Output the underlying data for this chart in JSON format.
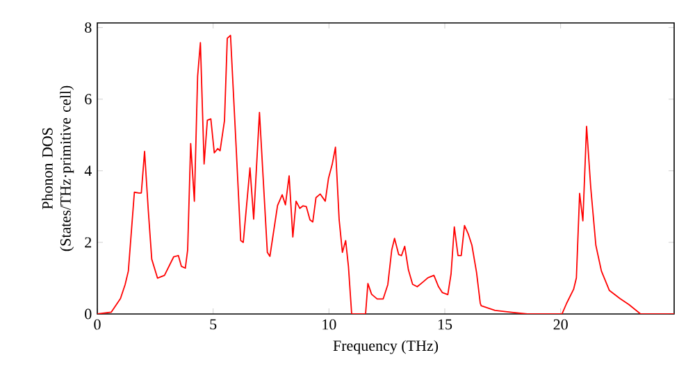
{
  "chart_data": {
    "type": "line",
    "xlabel": "Frequency (THz)",
    "ylabel": "Phonon DOS (States/THz·primitive cell)",
    "color": "#ff0000",
    "xlim": [
      0,
      24.9
    ],
    "ylim": [
      0,
      8.13
    ],
    "xticks": [
      0,
      5,
      10,
      15,
      20
    ],
    "yticks": [
      0,
      2,
      4,
      6,
      8
    ],
    "x": [
      0,
      0.6,
      1.0,
      1.2,
      1.34,
      1.6,
      1.8,
      1.9,
      2.04,
      2.2,
      2.35,
      2.6,
      2.9,
      3.3,
      3.5,
      3.63,
      3.8,
      3.9,
      4.03,
      4.19,
      4.33,
      4.45,
      4.61,
      4.75,
      4.9,
      5.05,
      5.2,
      5.3,
      5.49,
      5.61,
      5.75,
      5.99,
      6.19,
      6.3,
      6.59,
      6.75,
      7.0,
      7.34,
      7.45,
      7.78,
      7.98,
      8.12,
      8.28,
      8.44,
      8.58,
      8.74,
      8.88,
      9.02,
      9.18,
      9.3,
      9.44,
      9.62,
      9.84,
      9.98,
      10.14,
      10.28,
      10.44,
      10.58,
      10.72,
      10.84,
      10.98,
      11.58,
      11.68,
      11.84,
      12.08,
      12.34,
      12.54,
      12.71,
      12.83,
      13.01,
      13.13,
      13.27,
      13.43,
      13.61,
      13.81,
      14.07,
      14.27,
      14.53,
      14.73,
      14.89,
      15.13,
      15.27,
      15.41,
      15.57,
      15.71,
      15.85,
      16.01,
      16.17,
      16.37,
      16.53,
      16.57,
      17.17,
      17.96,
      18.56,
      20.06,
      20.26,
      20.56,
      20.68,
      20.82,
      20.96,
      21.12,
      21.3,
      21.52,
      21.76,
      22.1,
      22.56,
      22.95,
      23.45,
      24.9
    ],
    "values": [
      0,
      0.05,
      0.43,
      0.82,
      1.2,
      3.4,
      3.38,
      3.38,
      4.54,
      2.9,
      1.53,
      1.0,
      1.08,
      1.6,
      1.63,
      1.33,
      1.28,
      1.79,
      4.76,
      3.15,
      6.64,
      7.58,
      4.19,
      5.41,
      5.45,
      4.5,
      4.62,
      4.56,
      5.4,
      7.7,
      7.78,
      4.7,
      2.05,
      2.0,
      4.08,
      2.65,
      5.63,
      1.72,
      1.61,
      3.03,
      3.33,
      3.05,
      3.86,
      2.15,
      3.15,
      2.95,
      3.02,
      3.0,
      2.63,
      2.57,
      3.25,
      3.35,
      3.15,
      3.79,
      4.18,
      4.66,
      2.63,
      1.72,
      2.05,
      1.33,
      0,
      0,
      0.85,
      0.55,
      0.42,
      0.42,
      0.82,
      1.79,
      2.11,
      1.66,
      1.63,
      1.89,
      1.23,
      0.83,
      0.76,
      0.9,
      1.01,
      1.08,
      0.76,
      0.6,
      0.54,
      1.12,
      2.43,
      1.63,
      1.63,
      2.47,
      2.24,
      1.92,
      1.16,
      0.3,
      0.23,
      0.1,
      0.04,
      0,
      0,
      0.3,
      0.69,
      1.01,
      3.37,
      2.6,
      5.24,
      3.53,
      1.92,
      1.2,
      0.66,
      0.43,
      0.26,
      0,
      0
    ]
  }
}
